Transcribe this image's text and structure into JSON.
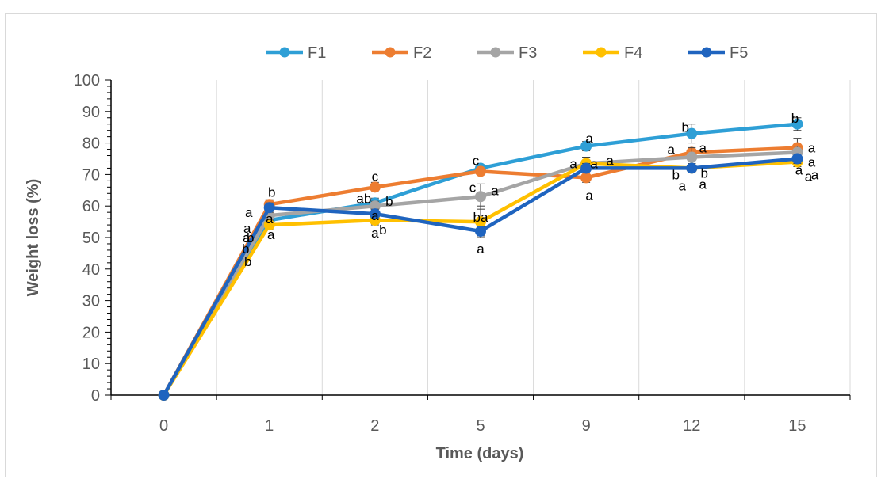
{
  "chart_data": {
    "type": "line",
    "title": "",
    "xlabel": "Time (days)",
    "ylabel": "Weight loss (%)",
    "categories": [
      "0",
      "1",
      "2",
      "5",
      "9",
      "12",
      "15"
    ],
    "ylim": [
      0,
      100
    ],
    "yticks": [
      0,
      10,
      20,
      30,
      40,
      50,
      60,
      70,
      80,
      90,
      100
    ],
    "grid": "vertical",
    "legend": "top",
    "series": [
      {
        "name": "F1",
        "color": "#2e9fd6",
        "values": [
          0,
          55.5,
          61,
          72,
          79,
          83,
          86
        ],
        "errors": [
          0,
          1.5,
          1.5,
          1,
          1.5,
          3,
          2
        ]
      },
      {
        "name": "F2",
        "color": "#ed7d31",
        "values": [
          0,
          60.5,
          66,
          71,
          69,
          77,
          78.5
        ],
        "errors": [
          0,
          1.5,
          1.5,
          1,
          1.5,
          2,
          3
        ]
      },
      {
        "name": "F3",
        "color": "#a5a5a5",
        "values": [
          0,
          57,
          60,
          63,
          73.5,
          75.5,
          77
        ],
        "errors": [
          0,
          1.5,
          1.5,
          4,
          2,
          3,
          2
        ]
      },
      {
        "name": "F4",
        "color": "#ffc000",
        "values": [
          0,
          54,
          55.5,
          55,
          73.5,
          72,
          74
        ],
        "errors": [
          0,
          1.5,
          1.5,
          5,
          2,
          1.5,
          1.5
        ]
      },
      {
        "name": "F5",
        "color": "#1f64bf",
        "values": [
          0,
          59.5,
          57.5,
          52,
          72,
          72,
          75
        ],
        "errors": [
          0,
          1.5,
          1.5,
          1.5,
          1.5,
          1.5,
          1.5
        ]
      }
    ],
    "annotations": [
      {
        "text": "b",
        "x": "1",
        "y": 64.5
      },
      {
        "text": "a",
        "x": "1",
        "y": 58
      },
      {
        "text": "a",
        "x": "1",
        "y": 53
      },
      {
        "text": "a",
        "x": "1",
        "y": 50
      },
      {
        "text": "b",
        "x": "1",
        "y": 50
      },
      {
        "text": "b",
        "x": "1",
        "y": 46.5
      },
      {
        "text": "b",
        "x": "1",
        "y": 42.5
      },
      {
        "text": "a",
        "x": "1",
        "y": 56
      },
      {
        "text": "a",
        "x": "1",
        "y": 51
      },
      {
        "text": "c",
        "x": "2",
        "y": 69.5
      },
      {
        "text": "b",
        "x": "2",
        "y": 61.5
      },
      {
        "text": "ab",
        "x": "2",
        "y": 62.5
      },
      {
        "text": "a",
        "x": "2",
        "y": 57
      },
      {
        "text": "b",
        "x": "2",
        "y": 52.5
      },
      {
        "text": "a",
        "x": "2",
        "y": 51.5
      },
      {
        "text": "c",
        "x": "5",
        "y": 74.5
      },
      {
        "text": "a",
        "x": "5",
        "y": 65
      },
      {
        "text": "c",
        "x": "5",
        "y": 66
      },
      {
        "text": "ba",
        "x": "5",
        "y": 56.5
      },
      {
        "text": "a",
        "x": "5",
        "y": 46.5
      },
      {
        "text": "a",
        "x": "9",
        "y": 81.5
      },
      {
        "text": "a",
        "x": "9",
        "y": 73.5
      },
      {
        "text": "a",
        "x": "9",
        "y": 73.5
      },
      {
        "text": "a",
        "x": "9",
        "y": 74.5
      },
      {
        "text": "a",
        "x": "9",
        "y": 63.5
      },
      {
        "text": "b",
        "x": "12",
        "y": 85
      },
      {
        "text": "a",
        "x": "12",
        "y": 78
      },
      {
        "text": "a",
        "x": "12",
        "y": 78.5
      },
      {
        "text": "b",
        "x": "12",
        "y": 70
      },
      {
        "text": "b",
        "x": "12",
        "y": 70.5
      },
      {
        "text": "a",
        "x": "12",
        "y": 66.5
      },
      {
        "text": "a",
        "x": "12",
        "y": 67
      },
      {
        "text": "b",
        "x": "15",
        "y": 88
      },
      {
        "text": "a",
        "x": "15",
        "y": 78.5
      },
      {
        "text": "a",
        "x": "15",
        "y": 74
      },
      {
        "text": "a",
        "x": "15",
        "y": 71.5
      },
      {
        "text": "a",
        "x": "15",
        "y": 69.5
      },
      {
        "text": "a",
        "x": "15",
        "y": 70
      }
    ]
  }
}
